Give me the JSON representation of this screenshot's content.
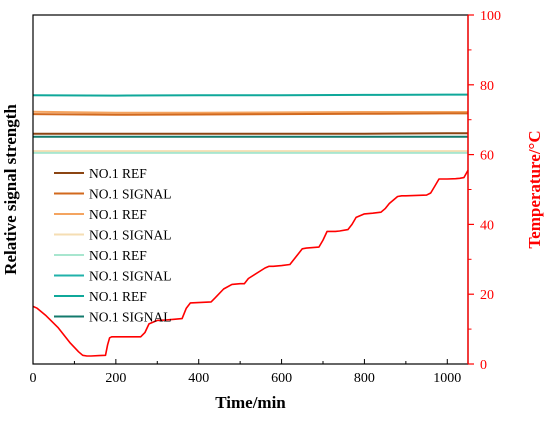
{
  "chart_data": {
    "type": "line",
    "xlabel": "Time/min",
    "ylabel": "Relative signal strength",
    "y2label": "Temperature/°C",
    "xlim": [
      0,
      1050
    ],
    "x_ticks": [
      0,
      200,
      400,
      600,
      800,
      1000
    ],
    "y2lim": [
      0,
      100
    ],
    "y2_ticks": [
      0,
      20,
      40,
      60,
      80,
      100
    ],
    "grid": false,
    "legend_position": "left",
    "colors": {
      "axis": "#000000",
      "temperature_axis": "#ff0000"
    },
    "legend": [
      {
        "label": "NO.1 REF",
        "color": "#8b4513"
      },
      {
        "label": "NO.1 SIGNAL",
        "color": "#d2691e"
      },
      {
        "label": "NO.1 REF",
        "color": "#f4a460"
      },
      {
        "label": "NO.1 SIGNAL",
        "color": "#f5deb3"
      },
      {
        "label": "NO.1 REF",
        "color": "#a8e6cf"
      },
      {
        "label": "NO.1 SIGNAL",
        "color": "#20b2aa"
      },
      {
        "label": "NO.1 REF",
        "color": "#0fa89a"
      },
      {
        "label": "NO.1 SIGNAL",
        "color": "#137a6c"
      }
    ],
    "signal_series": [
      {
        "color": "#0fa89a",
        "axis": "temperature",
        "x": [
          0,
          200,
          400,
          600,
          800,
          1000,
          1050
        ],
        "y": [
          77.0,
          76.9,
          77.0,
          77.0,
          77.1,
          77.2,
          77.2
        ]
      },
      {
        "color": "#f4a460",
        "axis": "temperature",
        "x": [
          0,
          200,
          400,
          600,
          800,
          1000,
          1050
        ],
        "y": [
          72.3,
          72.0,
          72.0,
          72.1,
          72.2,
          72.2,
          72.2
        ]
      },
      {
        "color": "#d2691e",
        "axis": "temperature",
        "x": [
          0,
          200,
          400,
          600,
          800,
          1000,
          1050
        ],
        "y": [
          71.6,
          71.4,
          71.5,
          71.6,
          71.7,
          71.8,
          71.8
        ]
      },
      {
        "color": "#8b4513",
        "axis": "temperature",
        "x": [
          0,
          200,
          400,
          600,
          800,
          1000,
          1050
        ],
        "y": [
          66.0,
          66.0,
          66.0,
          66.0,
          66.0,
          66.1,
          66.1
        ]
      },
      {
        "color": "#137a6c",
        "axis": "temperature",
        "x": [
          0,
          200,
          400,
          600,
          800,
          1000,
          1050
        ],
        "y": [
          65.1,
          65.1,
          65.1,
          65.1,
          65.1,
          65.1,
          65.1
        ]
      },
      {
        "color": "#f5deb3",
        "axis": "temperature",
        "x": [
          0,
          200,
          400,
          600,
          800,
          1000,
          1050
        ],
        "y": [
          61.0,
          61.0,
          61.0,
          61.0,
          61.0,
          61.0,
          61.0
        ]
      },
      {
        "color": "#a8e6cf",
        "axis": "temperature",
        "x": [
          0,
          200,
          400,
          600,
          800,
          1000,
          1050
        ],
        "y": [
          60.5,
          60.5,
          60.5,
          60.5,
          60.5,
          60.5,
          60.5
        ]
      }
    ],
    "temperature_series": {
      "color": "#ff0000",
      "x": [
        0,
        10,
        30,
        60,
        90,
        110,
        120,
        130,
        140,
        160,
        175,
        180,
        185,
        190,
        260,
        270,
        280,
        300,
        320,
        340,
        360,
        370,
        380,
        430,
        440,
        460,
        480,
        500,
        510,
        520,
        560,
        570,
        580,
        600,
        620,
        640,
        650,
        660,
        690,
        700,
        710,
        730,
        740,
        760,
        770,
        780,
        800,
        820,
        840,
        850,
        860,
        880,
        890,
        900,
        950,
        960,
        970,
        980,
        1000,
        1020,
        1030,
        1040,
        1050
      ],
      "y": [
        16.5,
        16.0,
        14.0,
        10.5,
        6.0,
        3.5,
        2.5,
        2.3,
        2.3,
        2.4,
        2.5,
        5.5,
        7.5,
        7.8,
        7.8,
        9.0,
        11.5,
        12.5,
        12.6,
        12.8,
        13.0,
        16.0,
        17.5,
        17.8,
        19.0,
        21.5,
        22.8,
        23.0,
        23.0,
        24.5,
        27.5,
        28.0,
        28.0,
        28.2,
        28.5,
        31.5,
        33.0,
        33.2,
        33.5,
        35.5,
        38.0,
        38.0,
        38.1,
        38.5,
        40.0,
        42.0,
        43.0,
        43.2,
        43.5,
        44.5,
        46.0,
        48.0,
        48.2,
        48.2,
        48.4,
        49.0,
        51.0,
        53.0,
        53.0,
        53.1,
        53.2,
        53.4,
        55.5
      ]
    }
  }
}
